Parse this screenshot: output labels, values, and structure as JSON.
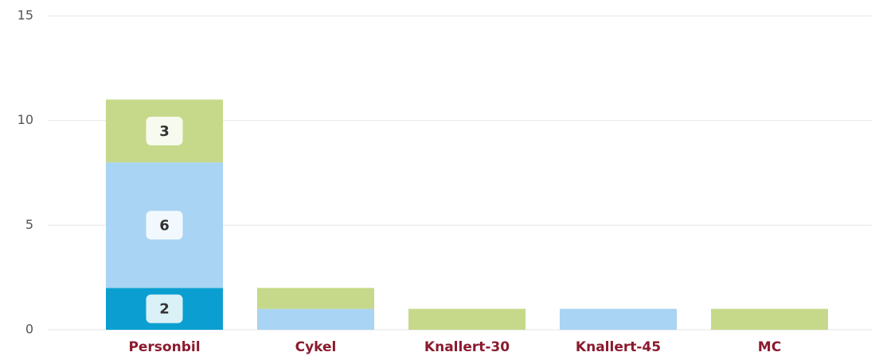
{
  "chart_data": {
    "type": "stacked_bar",
    "categories": [
      "Personbil",
      "Cykel",
      "Knallert-30",
      "Knallert-45",
      "MC"
    ],
    "series": [
      {
        "color": "#0a9fd0",
        "values": [
          2,
          0,
          0,
          0,
          0
        ]
      },
      {
        "color": "#a9d4f3",
        "values": [
          6,
          1,
          0,
          1,
          0
        ]
      },
      {
        "color": "#c6d98a",
        "values": [
          3,
          1,
          1,
          0,
          1
        ]
      }
    ],
    "ylim": [
      0,
      15
    ],
    "yticks": [
      0,
      5,
      10,
      15
    ],
    "grid": true
  }
}
